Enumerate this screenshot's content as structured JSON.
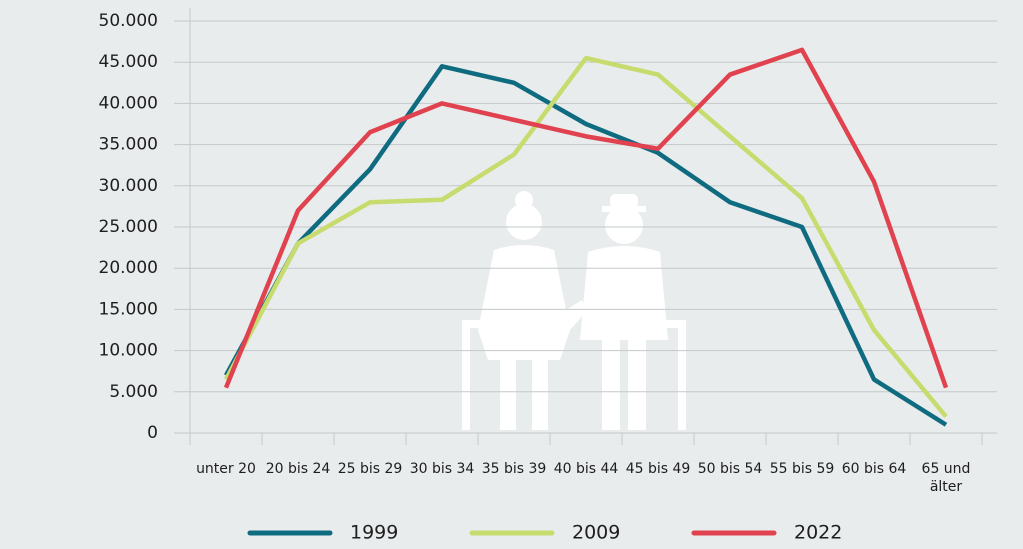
{
  "chart_data": {
    "type": "line",
    "categories": [
      "unter 20",
      "20 bis 24",
      "25 bis 29",
      "30 bis 34",
      "35 bis 39",
      "40 bis 44",
      "45 bis 49",
      "50 bis 54",
      "55 bis 59",
      "60 bis 64",
      "65 und älter"
    ],
    "series": [
      {
        "name": "1999",
        "color": "#0f6b80",
        "values": [
          7000,
          23000,
          32000,
          44500,
          42500,
          37500,
          34000,
          28000,
          25000,
          6500,
          1000
        ]
      },
      {
        "name": "2009",
        "color": "#c7db6e",
        "values": [
          6500,
          23000,
          28000,
          28300,
          33800,
          45500,
          43500,
          36000,
          28500,
          12500,
          2000
        ]
      },
      {
        "name": "2022",
        "color": "#e0434f",
        "values": [
          5500,
          27000,
          36500,
          40000,
          38000,
          36000,
          34500,
          43500,
          46500,
          30500,
          5500
        ]
      }
    ],
    "ylim": [
      0,
      50000
    ],
    "yticks": [
      0,
      {
        "value": 5000,
        "label": "5.000"
      },
      {
        "value": 10000,
        "label": "10.000"
      },
      {
        "value": 15000,
        "label": "15.000"
      },
      {
        "value": 20000,
        "label": "20.000"
      },
      {
        "value": 25000,
        "label": "25.000"
      },
      {
        "value": 30000,
        "label": "30.000"
      },
      {
        "value": 35000,
        "label": "35.000"
      },
      {
        "value": 40000,
        "label": "40.000"
      },
      {
        "value": 45000,
        "label": "45.000"
      },
      {
        "value": 50000,
        "label": "50.000"
      }
    ],
    "grid": true
  }
}
